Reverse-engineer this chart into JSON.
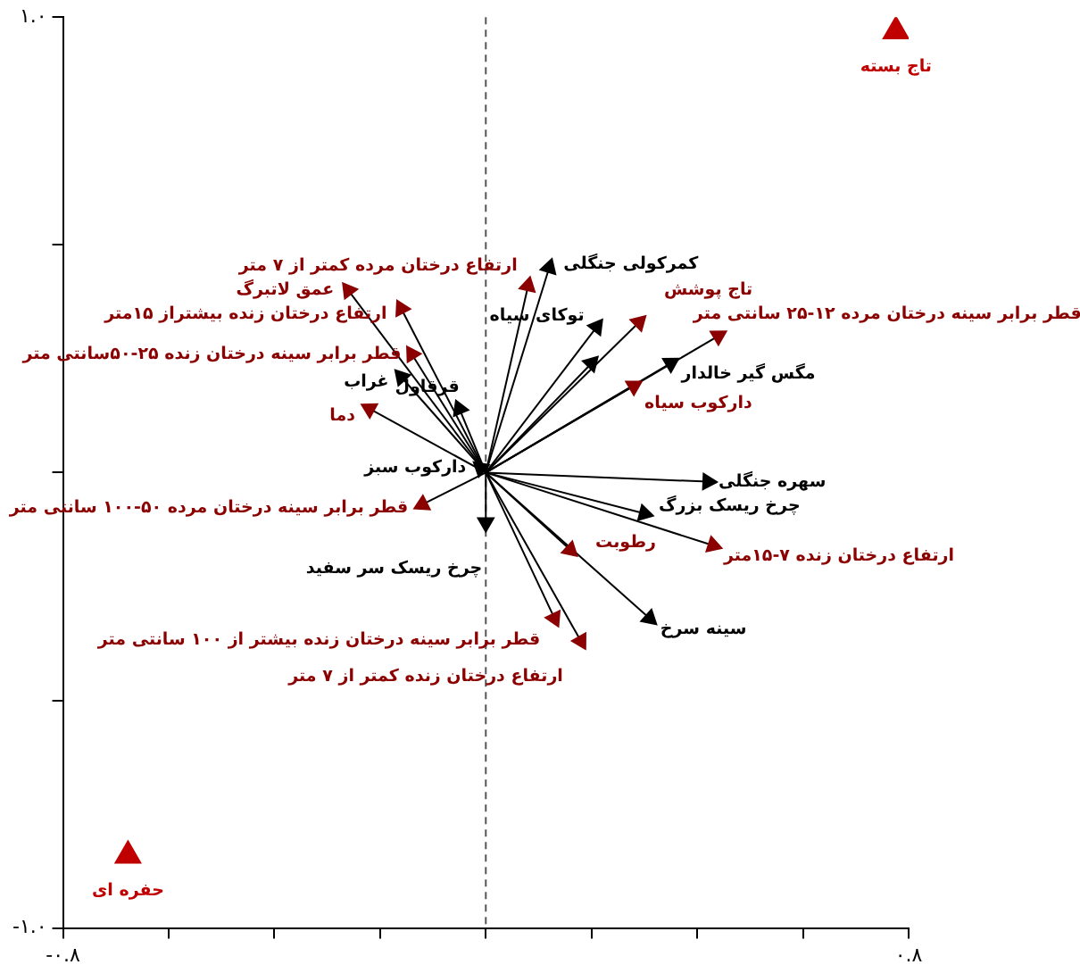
{
  "chart_data": {
    "type": "scatter",
    "legend": false,
    "grid": false,
    "xlim": [
      -0.8,
      0.8
    ],
    "xticks": [
      {
        "value": -0.8,
        "label": "-۰.۸"
      },
      {
        "value": -0.6,
        "label": null
      },
      {
        "value": -0.4,
        "label": null
      },
      {
        "value": -0.2,
        "label": null
      },
      {
        "value": 0,
        "label": null
      },
      {
        "value": 0.2,
        "label": null
      },
      {
        "value": 0.4,
        "label": null
      },
      {
        "value": 0.6,
        "label": null
      },
      {
        "value": 0.8,
        "label": "۰.۸"
      }
    ],
    "ylim": [
      -1,
      1
    ],
    "yticks": [
      {
        "value": -1,
        "label": "-۱.۰"
      },
      {
        "value": -0.5,
        "label": null
      },
      {
        "value": 0,
        "label": null
      },
      {
        "value": 0.5,
        "label": null
      },
      {
        "value": 1,
        "label": "۱.۰"
      }
    ],
    "ref_lines": [
      {
        "axis": "x",
        "value": 0,
        "line_style": "dashed",
        "color": "#555555"
      }
    ],
    "series": [
      {
        "name": "عمق لاتبرگ",
        "color": "#8b0000",
        "marker": "triangle",
        "line_style": "solid",
        "x": [
          -0.26
        ],
        "values": [
          0.4
        ]
      },
      {
        "name": "ارتفاع درختان زنده بیشتراز ۱۵متر",
        "color": "#8b0000",
        "marker": "triangle",
        "line_style": "solid",
        "x": [
          -0.16
        ],
        "values": [
          0.36
        ]
      },
      {
        "name": "قطر برابر سینه درختان زنده ۲۵-۵۰سانتی متر",
        "color": "#8b0000",
        "marker": "triangle",
        "line_style": "solid",
        "x": [
          -0.14
        ],
        "values": [
          0.26
        ]
      },
      {
        "name": "دما",
        "color": "#8b0000",
        "marker": "triangle",
        "line_style": "solid",
        "x": [
          -0.22
        ],
        "values": [
          0.14
        ]
      },
      {
        "name": "قطر برابر سینه درختان مرده ۵۰-۱۰۰ سانتی متر",
        "color": "#8b0000",
        "marker": "triangle",
        "line_style": "solid",
        "x": [
          -0.12
        ],
        "values": [
          -0.07
        ]
      },
      {
        "name": "ارتفاع درختان مرده کمتر از ۷ متر",
        "color": "#8b0000",
        "marker": "triangle",
        "line_style": "solid",
        "x": [
          0.08
        ],
        "values": [
          0.41
        ]
      },
      {
        "name": "تاج پوشش",
        "color": "#8b0000",
        "marker": "triangle",
        "line_style": "solid",
        "x": [
          0.29
        ],
        "values": [
          0.33
        ]
      },
      {
        "name": "قطر برابر سینه درختان مرده ۱۲-۲۵ سانتی متر",
        "color": "#8b0000",
        "marker": "triangle",
        "line_style": "solid",
        "x": [
          0.44
        ],
        "values": [
          0.3
        ]
      },
      {
        "name": "دارکوب سیاه",
        "color": "#8b0000",
        "marker": "triangle",
        "line_style": "solid",
        "x": [
          0.28
        ],
        "values": [
          0.19
        ]
      },
      {
        "name": "ارتفاع درختان زنده ۷-۱۵متر",
        "color": "#8b0000",
        "marker": "triangle",
        "line_style": "solid",
        "x": [
          0.43
        ],
        "values": [
          -0.16
        ]
      },
      {
        "name": "رطوبت",
        "color": "#8b0000",
        "marker": "triangle",
        "line_style": "solid",
        "x": [
          0.16
        ],
        "values": [
          -0.17
        ]
      },
      {
        "name": "قطر برابر سینه درختان زنده بیشتر از ۱۰۰ سانتی متر",
        "color": "#8b0000",
        "marker": "triangle",
        "line_style": "solid",
        "x": [
          0.13
        ],
        "values": [
          -0.32
        ]
      },
      {
        "name": "ارتفاع درختان زنده کمتر از ۷ متر",
        "color": "#8b0000",
        "marker": "triangle",
        "line_style": "solid",
        "x": [
          0.18
        ],
        "values": [
          -0.37
        ]
      },
      {
        "name": "غراب",
        "color": "#000000",
        "marker": "triangle",
        "line_style": "solid",
        "x": [
          -0.16
        ],
        "values": [
          0.21
        ]
      },
      {
        "name": "قرقاول",
        "color": "#000000",
        "marker": "triangle",
        "line_style": "solid",
        "x": [
          -0.05
        ],
        "values": [
          0.14
        ]
      },
      {
        "name": "چرخ ریسک سر سفید",
        "color": "#000000",
        "marker": "triangle",
        "line_style": "solid",
        "x": [
          0.0
        ],
        "values": [
          -0.11
        ]
      },
      {
        "name": "کمرکولی جنگلی",
        "color": "#000000",
        "marker": "triangle",
        "line_style": "solid",
        "x": [
          0.12
        ],
        "values": [
          0.45
        ]
      },
      {
        "name": "توکای سیاه",
        "color": "#000000",
        "marker": "triangle",
        "line_style": "solid",
        "x": [
          0.21
        ],
        "values": [
          0.32
        ]
      },
      {
        "color": "#000000",
        "marker": "triangle",
        "line_style": "solid",
        "x": [
          0.2
        ],
        "values": [
          0.24
        ]
      },
      {
        "name": "مگس گیر خالدار",
        "color": "#000000",
        "marker": "triangle",
        "line_style": "solid",
        "x": [
          0.35
        ],
        "values": [
          0.24
        ]
      },
      {
        "name": "سهره جنگلی",
        "color": "#000000",
        "marker": "triangle",
        "line_style": "solid",
        "x": [
          0.42
        ],
        "values": [
          -0.02
        ]
      },
      {
        "name": "چرخ ریسک بزرگ",
        "color": "#000000",
        "marker": "triangle",
        "line_style": "solid",
        "x": [
          0.3
        ],
        "values": [
          -0.09
        ]
      },
      {
        "name": "سینه سرخ",
        "color": "#000000",
        "marker": "triangle",
        "line_style": "solid",
        "x": [
          0.31
        ],
        "values": [
          -0.32
        ]
      },
      {
        "name": "دارکوب سبز",
        "color": "#000000",
        "marker": "triangle",
        "line_style": "solid",
        "x": [
          -0.01
        ],
        "values": [
          0.01
        ]
      },
      {
        "name": "تاج بسته",
        "color": "#c00000",
        "marker": "triangle",
        "x": [
          0.776
        ],
        "values": [
          0.969
        ]
      },
      {
        "name": "حفره ای",
        "color": "#c00000",
        "marker": "triangle",
        "x": [
          -0.677
        ],
        "values": [
          -0.841
        ]
      }
    ]
  }
}
